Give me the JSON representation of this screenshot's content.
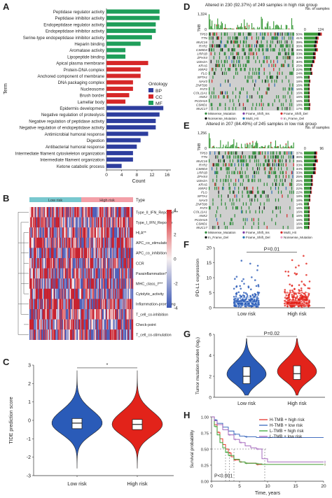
{
  "panels": {
    "A": "A",
    "B": "B",
    "C": "C",
    "D": "D",
    "E": "E",
    "F": "F",
    "G": "G",
    "H": "H"
  },
  "colors": {
    "BP": "#2e3e9e",
    "CC": "#d62728",
    "MF": "#1f9e5a",
    "low": "#2a5bb8",
    "high": "#e2231a",
    "heatHigh": "#d9262b",
    "heatLow": "#3a57b5",
    "mut_green": "#2e8b3a",
    "mut_red": "#d62728",
    "mut_black": "#111111",
    "mut_blue": "#2f6fb5",
    "mut_grey": "#cfcfcf",
    "bar_green": "#3a9a3a"
  },
  "panelA": {
    "chart_data": {
      "type": "bar",
      "orientation": "horizontal",
      "categories": [
        "Peptidase regulator activity",
        "Peptidase inhibitor activity",
        "Endopeptidase regulator activity",
        "Endopeptidase inhibitor activity",
        "Serine-type endopeptidase inhibitor activity",
        "Heparin binding",
        "Aromatase activity",
        "Lipopeptide binding",
        "Apical plasma membrane",
        "Protein-DNA complex",
        "Anchored component of membrane",
        "DNA packaging complex",
        "Nucleosome",
        "Brush border",
        "Lamellar body",
        "Epidermis development",
        "Negative regulation of proteolysis",
        "Negative regulation of peptidase activity",
        "Negative regulation of endopeptidase activity",
        "Antimicrobial humoral response",
        "Digestion",
        "Antibacterial humoral response",
        "Intermediate filament cytoskeleton organization",
        "Intermediate filament organization",
        "Ketone catabolic process"
      ],
      "ontology": [
        "MF",
        "MF",
        "MF",
        "MF",
        "MF",
        "MF",
        "MF",
        "MF",
        "CC",
        "CC",
        "CC",
        "CC",
        "CC",
        "CC",
        "CC",
        "BP",
        "BP",
        "BP",
        "BP",
        "BP",
        "BP",
        "BP",
        "BP",
        "BP",
        "BP"
      ],
      "values": [
        14,
        14,
        13,
        13,
        12,
        9,
        5,
        5,
        11,
        9,
        9,
        7,
        7,
        6,
        5,
        15,
        14,
        13,
        13,
        11,
        9,
        8,
        7,
        7,
        4
      ],
      "xlabel": "Count",
      "ylabel": "Term",
      "xticks": [
        0,
        4,
        8,
        12,
        16
      ],
      "xlim": [
        0,
        17
      ],
      "legend": {
        "title": "Ontology",
        "items": [
          "BP",
          "CC",
          "MF"
        ]
      }
    }
  },
  "panelB": {
    "chart_data": {
      "type": "heatmap",
      "groups": [
        "Low risk",
        "High risk"
      ],
      "group_label": "Type",
      "rows": [
        "Type_II_IFN_Reponse***",
        "Type_I_IFN_Reponse",
        "HLA**",
        "APC_co_stimulation",
        "APC_co_inhibition",
        "CCR",
        "Parainflammation*",
        "MHC_class_I***",
        "Cytolytic_activity",
        "Inflammation-promoting",
        "T_cell_co-inhibition",
        "Check-point",
        "T_cell_co-stimulation"
      ],
      "scale_ticks": [
        4,
        2,
        0,
        -2,
        -4
      ],
      "scale_range": [
        -4,
        4
      ]
    }
  },
  "panelC": {
    "chart_data": {
      "type": "violin",
      "categories": [
        "Low risk",
        "High risk"
      ],
      "ylabel": "TIDE prediction score",
      "ylim": [
        -3,
        3
      ],
      "yticks": [
        -3,
        -2,
        -1,
        0,
        1,
        2,
        3
      ],
      "medians": [
        -0.15,
        -0.22
      ],
      "q1": [
        -0.45,
        -0.5
      ],
      "q3": [
        0.1,
        0.05
      ],
      "significance": "*"
    }
  },
  "panelD": {
    "title": "Altered in 230 (92.37%) of 249 samples in high risk group",
    "tmb_max": "1,324",
    "tmb_label": "TMB",
    "side_label": "No. of samples",
    "side_ticks": [
      "0",
      "124"
    ],
    "chart_data": {
      "type": "table",
      "genes": [
        "TP53",
        "TTN",
        "MUC16",
        "RYR2",
        "CSMD3",
        "LRP1B",
        "ZFHX4",
        "USH2A",
        "KRAS",
        "XIRP2",
        "FLG",
        "SPTA1",
        "NAV3",
        "ZNF536",
        "FAT3",
        "COL11A1",
        "ANK2",
        "PCDH15",
        "CSMD1",
        "MUC17"
      ],
      "percents": [
        "50%",
        "41%",
        "39%",
        "36%",
        "39%",
        "33%",
        "33%",
        "30%",
        "25%",
        "22%",
        "24%",
        "16%",
        "18%",
        "16%",
        "16%",
        "16%",
        "16%",
        "16%",
        "18%",
        "17%"
      ]
    },
    "legend": [
      "Missense_Mutation",
      "Frame_Shift_Ins",
      "Frame_Shift_Del",
      "Nonsense_Mutation",
      "Multi_Hit",
      "In_Frame_Del"
    ]
  },
  "panelE": {
    "title": "Altered in 207 (84.49%) of 245 samples in low risk group",
    "tmb_max": "1,256",
    "tmb_label": "TMB",
    "side_label": "No. of samples",
    "side_ticks": [
      "0",
      "96"
    ],
    "chart_data": {
      "type": "table",
      "genes": [
        "TP53",
        "TTN",
        "MUC16",
        "RYR2",
        "CSMD3",
        "LRP1B",
        "ZFHX4",
        "USH2A",
        "KRAS",
        "XIRP2",
        "FLG",
        "SPTA1",
        "NAV3",
        "ZNF536",
        "FAT3",
        "COL11A1",
        "ANK2",
        "PCDH15",
        "CSMD1",
        "MUC17"
      ],
      "percents": [
        "37%",
        "36%",
        "39%",
        "33%",
        "34%",
        "33%",
        "25%",
        "25%",
        "25%",
        "22%",
        "22%",
        "18%",
        "18%",
        "14%",
        "16%",
        "16%",
        "16%",
        "16%",
        "16%",
        "15%"
      ]
    },
    "legend": [
      "Missense_Mutation",
      "Frame_Shift_Ins",
      "Multi_Hit",
      "In_Frame_Del",
      "Frame_Shift_Del",
      "Nonsense_Mutation",
      "Translation_Start_Site"
    ]
  },
  "panelF": {
    "chart_data": {
      "type": "scatter",
      "categories": [
        "Low risk",
        "High risk"
      ],
      "ylabel": "PD-L1 expression",
      "ylim": [
        0,
        20
      ],
      "yticks": [
        0,
        5,
        10,
        15,
        20
      ],
      "medians": [
        1.8,
        2.2
      ],
      "q1": [
        0.9,
        1.0
      ],
      "q3": [
        3.3,
        5.0
      ],
      "annotation": "P=0.01"
    }
  },
  "panelG": {
    "chart_data": {
      "type": "violin",
      "categories": [
        "Low risk",
        "High risk"
      ],
      "ylabel": "Tumor mutation burden (log₂)",
      "ylim": [
        0,
        6
      ],
      "yticks": [
        0,
        2,
        4,
        6
      ],
      "medians": [
        2.0,
        2.25
      ],
      "q1": [
        1.3,
        1.7
      ],
      "q3": [
        2.9,
        3.0
      ],
      "annotation": "P=0.02"
    }
  },
  "panelH": {
    "chart_data": {
      "type": "line",
      "xlabel": "Time, years",
      "ylabel": "Survival probability",
      "xlim": [
        0,
        20
      ],
      "ylim": [
        0,
        1
      ],
      "xticks": [
        0,
        5,
        10,
        15,
        20
      ],
      "yticks": [
        0.0,
        0.25,
        0.5,
        0.75,
        1.0
      ],
      "series": [
        {
          "name": "H-TMB + high risk",
          "color": "#e2231a",
          "x": [
            0,
            0.5,
            1,
            1.5,
            2,
            2.5,
            3,
            3.5,
            4,
            5,
            6,
            8,
            20
          ],
          "y": [
            1,
            0.88,
            0.76,
            0.66,
            0.57,
            0.5,
            0.44,
            0.38,
            0.33,
            0.3,
            0.28,
            0.26,
            0.26
          ]
        },
        {
          "name": "H-TMB + low risk",
          "color": "#2a5bb8",
          "x": [
            0,
            0.5,
            1,
            2,
            3,
            4,
            5,
            6,
            8,
            10,
            20
          ],
          "y": [
            1,
            0.95,
            0.9,
            0.84,
            0.78,
            0.73,
            0.7,
            0.69,
            0.68,
            0.68,
            0.68
          ]
        },
        {
          "name": "L-TMB + high risk",
          "color": "#2aa02a",
          "x": [
            0,
            0.5,
            1,
            1.5,
            2,
            2.5,
            3,
            4,
            5,
            6,
            8,
            9,
            12,
            20
          ],
          "y": [
            1,
            0.85,
            0.72,
            0.6,
            0.52,
            0.45,
            0.4,
            0.34,
            0.3,
            0.28,
            0.27,
            0.26,
            0.26,
            0.26
          ]
        },
        {
          "name": "L-TMB + low risk",
          "color": "#9b59b6",
          "x": [
            0,
            0.5,
            1,
            2,
            3,
            4,
            5,
            6,
            7,
            8,
            9,
            10,
            20
          ],
          "y": [
            1,
            0.94,
            0.88,
            0.8,
            0.72,
            0.65,
            0.6,
            0.55,
            0.52,
            0.5,
            0.35,
            0.3,
            0.3
          ]
        }
      ],
      "annotation": "P<0.001",
      "legend": "top-right"
    }
  }
}
